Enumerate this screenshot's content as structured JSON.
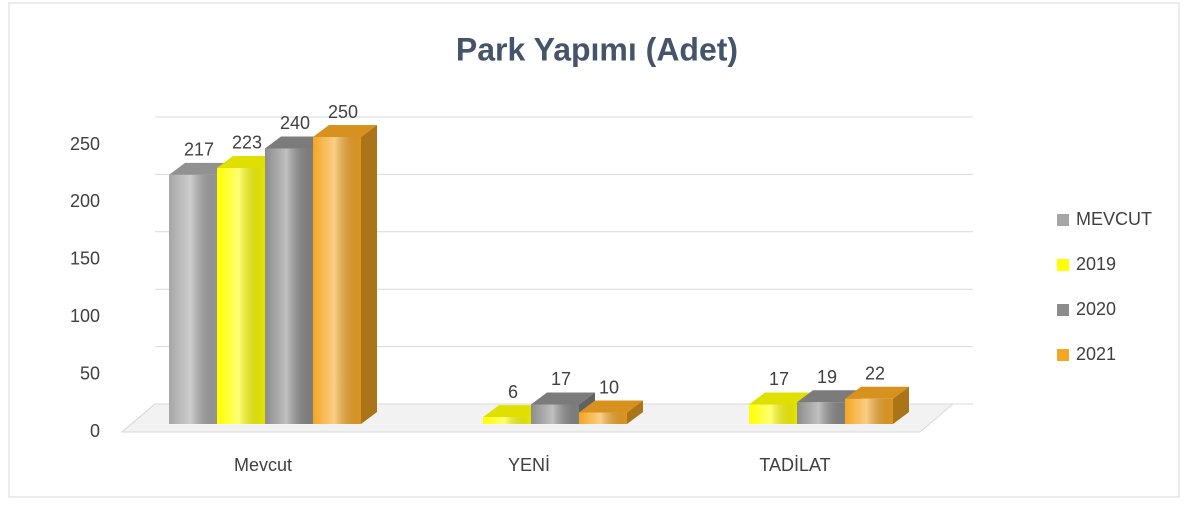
{
  "chart_data": {
    "type": "bar",
    "title": "Park Yapımı (Adet)",
    "categories": [
      "Mevcut",
      "YENİ",
      "TADİLAT"
    ],
    "series": [
      {
        "name": "MEVCUT",
        "color": "#a6a6a6",
        "values": [
          217,
          null,
          null
        ]
      },
      {
        "name": "2019",
        "color": "#ffff00",
        "values": [
          223,
          6,
          17
        ]
      },
      {
        "name": "2020",
        "color": "#8c8c8c",
        "values": [
          240,
          17,
          19
        ]
      },
      {
        "name": "2021",
        "color": "#f5a623",
        "values": [
          250,
          10,
          22
        ]
      }
    ],
    "ylim": [
      0,
      250
    ],
    "yticks": [
      0,
      50,
      100,
      150,
      200,
      250
    ],
    "grid": true,
    "legend": "right"
  }
}
